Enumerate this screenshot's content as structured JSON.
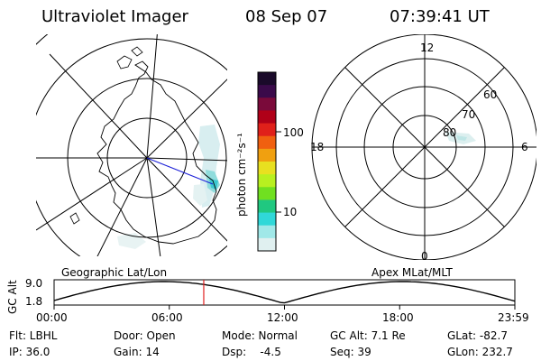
{
  "header": {
    "instrument": "Ultraviolet Imager",
    "date": "08 Sep 07",
    "time": "07:39:41 UT"
  },
  "colorbar": {
    "unit_label": "photon cm⁻²s⁻¹",
    "tick_100": "100",
    "tick_10": "10",
    "colors": [
      "#1a0a2a",
      "#3a0a4a",
      "#7a0a3a",
      "#b00018",
      "#e0201a",
      "#f06010",
      "#f0a010",
      "#e8e020",
      "#b8f020",
      "#70e020",
      "#20c880",
      "#30d8d8",
      "#a0e8e8",
      "#e0f0f0"
    ]
  },
  "left_panel": {
    "caption": "Geographic Lat/Lon"
  },
  "right_panel": {
    "caption": "Apex MLat/MLT",
    "mlt_labels": {
      "top": "12",
      "left": "18",
      "right": "6",
      "bottom": "0"
    },
    "lat_labels": {
      "lat60": "60",
      "lat70": "70",
      "lat80": "80"
    }
  },
  "altitude_plot": {
    "ylabel": "GC Alt",
    "ymax_label": "9.0",
    "ymin_label": "1.8",
    "x_ticks": [
      "00:00",
      "06:00",
      "12:00",
      "18:00",
      "23:59"
    ],
    "current_time_fraction": 0.3248
  },
  "footer": {
    "flt": "Flt: LBHL",
    "ip": "IP: 36.0",
    "door": "Door: Open",
    "gain": "Gain: 14",
    "mode": "Mode: Normal",
    "dsp": "Dsp:    -4.5",
    "gcalt": "GC Alt: 7.1 Re",
    "seq": "Seq: 39",
    "glat": "GLat: -82.7",
    "glon": "GLon: 232.7"
  }
}
